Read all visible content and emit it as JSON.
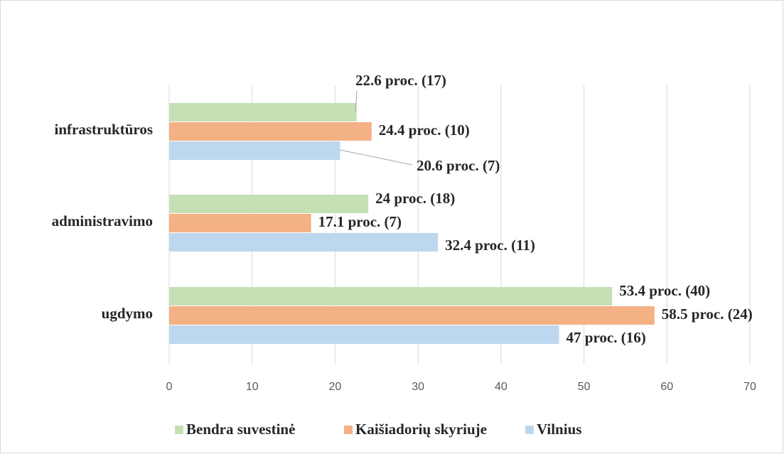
{
  "chart_data": {
    "type": "hbar",
    "categories": [
      "infrastruktūros",
      "administravimo",
      "ugdymo"
    ],
    "series": [
      {
        "name": "Bendra suvestinė",
        "color": "#c5e0b4",
        "values": [
          22.6,
          24,
          53.4
        ],
        "value_labels": [
          "22.6 proc. (17)",
          "24 proc. (18)",
          "53.4 proc.  (40)"
        ]
      },
      {
        "name": "Kaišiadorių skyriuje",
        "color": "#f4b183",
        "values": [
          24.4,
          17.1,
          58.5
        ],
        "value_labels": [
          "24.4 proc. (10)",
          "17.1 proc. (7)",
          "58.5 proc. (24)"
        ]
      },
      {
        "name": "Vilnius",
        "color": "#bdd7ee",
        "values": [
          20.6,
          32.4,
          47
        ],
        "value_labels": [
          "20.6 proc. (7)",
          "32.4 proc. (11)",
          "47 proc. (16)"
        ]
      }
    ],
    "xlim": [
      0,
      70
    ],
    "xticks": [
      0,
      10,
      20,
      30,
      40,
      50,
      60,
      70
    ],
    "grid": true,
    "legend": "bottom"
  }
}
